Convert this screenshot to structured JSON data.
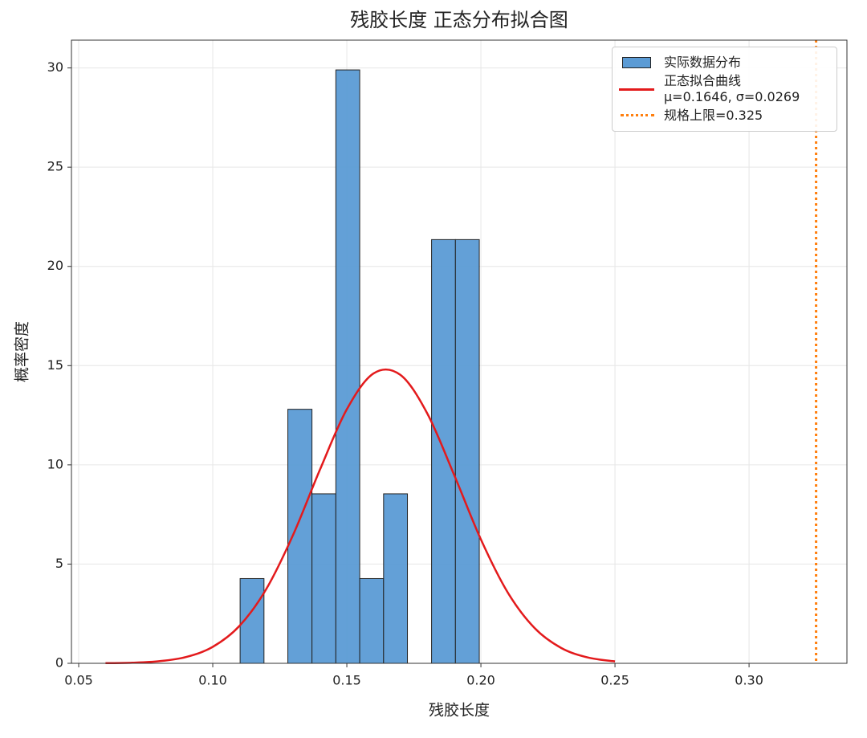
{
  "chart_data": {
    "type": "histogram",
    "title": "残胶长度 正态分布拟合图",
    "xlabel": "残胶长度",
    "ylabel": "概率密度",
    "name": "实际数据分布",
    "color": "#5b9bd5",
    "bins": [
      0.1102,
      0.1191,
      0.128,
      0.137,
      0.1459,
      0.1548,
      0.1637,
      0.1726,
      0.1816,
      0.1905,
      0.1994
    ],
    "values": [
      4.27,
      0,
      12.8,
      8.54,
      29.9,
      4.27,
      8.54,
      0,
      21.35,
      21.35
    ],
    "line": {
      "type": "line",
      "name": "正态拟合曲线\nμ=0.1646, σ=0.0269",
      "color": "#e31a1c",
      "x": [
        0.06,
        0.07,
        0.08,
        0.09,
        0.1,
        0.11,
        0.12,
        0.13,
        0.14,
        0.15,
        0.16,
        0.17,
        0.18,
        0.19,
        0.2,
        0.21,
        0.22,
        0.23,
        0.24,
        0.25
      ],
      "values": [
        0.0077,
        0.031,
        0.106,
        0.317,
        0.83,
        1.891,
        3.754,
        6.485,
        9.766,
        12.8,
        14.61,
        14.53,
        12.59,
        9.5,
        6.24,
        3.57,
        1.78,
        0.77,
        0.29,
        0.096
      ]
    },
    "vlines": [
      {
        "x": 0.325,
        "label": "规格上限=0.325",
        "color": "#ff7f0e"
      }
    ],
    "xlim": [
      0.0473,
      0.3365
    ],
    "ylim": [
      0,
      31.4
    ],
    "xticks": [
      0.05,
      {
        "value": 0.1,
        "label": "0.10"
      },
      0.15,
      {
        "value": 0.2,
        "label": "0.20"
      },
      0.25,
      {
        "value": 0.3,
        "label": "0.30"
      }
    ],
    "yticks": [
      0,
      5,
      10,
      15,
      20,
      25,
      30
    ],
    "grid": true
  }
}
